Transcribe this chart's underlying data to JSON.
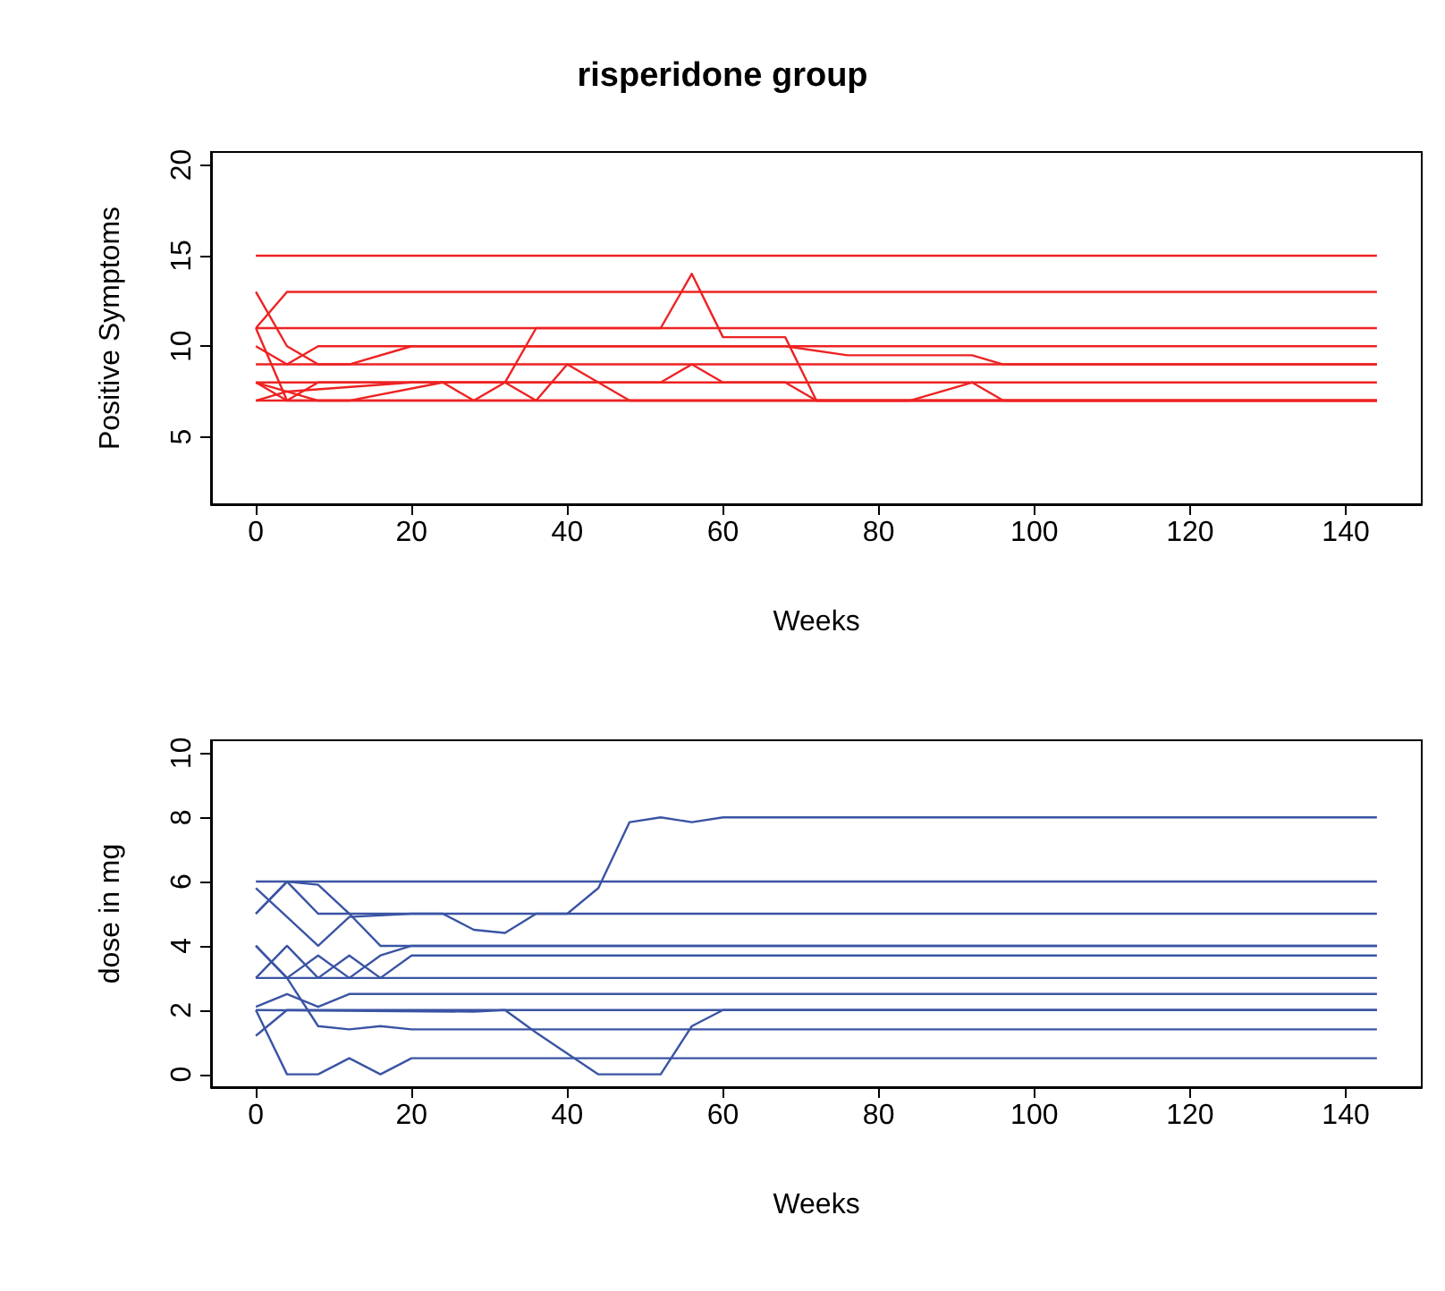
{
  "chart_data": [
    {
      "type": "line",
      "title": "risperidone group",
      "xlabel": "Weeks",
      "ylabel": "Positive Symptoms",
      "xlim": [
        -5.76,
        149.76
      ],
      "xticks": [
        0,
        20,
        40,
        60,
        80,
        100,
        120,
        140
      ],
      "ylim": [
        1.28,
        20.72
      ],
      "yticks": [
        5,
        10,
        15,
        20
      ],
      "grid": false,
      "series": [
        {
          "color": "#ee2222",
          "x": [
            0,
            144
          ],
          "values": [
            15,
            15
          ]
        },
        {
          "color": "#ee2222",
          "x": [
            0,
            4,
            144
          ],
          "values": [
            11,
            13,
            13
          ]
        },
        {
          "color": "#ee2222",
          "x": [
            0,
            4,
            8,
            12,
            20,
            68,
            76,
            92,
            96,
            144
          ],
          "values": [
            13,
            10,
            9,
            9,
            10,
            10,
            9.5,
            9.5,
            9,
            9
          ]
        },
        {
          "color": "#ee2222",
          "x": [
            0,
            52,
            56,
            60,
            68,
            72,
            144
          ],
          "values": [
            11,
            11,
            14,
            10.5,
            10.5,
            7,
            7
          ]
        },
        {
          "color": "#ee2222",
          "x": [
            0,
            4,
            8,
            144
          ],
          "values": [
            10,
            9,
            10,
            10
          ]
        },
        {
          "color": "#ee2222",
          "x": [
            0,
            28,
            32,
            36,
            144
          ],
          "values": [
            8,
            8,
            8,
            11,
            11
          ]
        },
        {
          "color": "#ee2222",
          "x": [
            0,
            144
          ],
          "values": [
            9,
            9
          ]
        },
        {
          "color": "#ee2222",
          "x": [
            0,
            4,
            8,
            52,
            56,
            60,
            68,
            72,
            144
          ],
          "values": [
            8,
            7,
            8,
            8,
            9,
            8,
            8,
            7,
            7
          ]
        },
        {
          "color": "#ee2222",
          "x": [
            0,
            4,
            20,
            144
          ],
          "values": [
            7,
            7.5,
            8,
            8
          ]
        },
        {
          "color": "#ee2222",
          "x": [
            0,
            28,
            32,
            36,
            40,
            44,
            48,
            84,
            92,
            96,
            144
          ],
          "values": [
            7,
            7,
            8,
            7,
            9,
            8,
            7,
            7,
            8,
            7,
            7
          ]
        },
        {
          "color": "#ee2222",
          "x": [
            0,
            8,
            144
          ],
          "values": [
            8,
            7,
            7
          ]
        },
        {
          "color": "#ee2222",
          "x": [
            0,
            4,
            12,
            24,
            28,
            144
          ],
          "values": [
            11,
            7,
            7,
            8,
            7,
            7
          ]
        }
      ]
    },
    {
      "type": "line",
      "xlabel": "Weeks",
      "ylabel": "dose in mg",
      "xlim": [
        -5.76,
        149.76
      ],
      "xticks": [
        0,
        20,
        40,
        60,
        80,
        100,
        120,
        140
      ],
      "ylim": [
        -0.4,
        10.4
      ],
      "yticks": [
        0,
        2,
        4,
        6,
        8,
        10
      ],
      "grid": false,
      "series": [
        {
          "color": "#3a54a4",
          "x": [
            0,
            144
          ],
          "values": [
            6,
            6
          ]
        },
        {
          "color": "#3a54a4",
          "x": [
            0,
            4,
            8,
            12,
            20,
            24,
            28,
            32,
            36,
            40,
            44,
            48,
            52,
            56,
            60,
            144
          ],
          "values": [
            5,
            6,
            5,
            5,
            5,
            5,
            4.5,
            4.4,
            5,
            5,
            5.8,
            7.85,
            8,
            7.85,
            8,
            8
          ]
        },
        {
          "color": "#3a54a4",
          "x": [
            0,
            8,
            12,
            20,
            144
          ],
          "values": [
            5.8,
            4,
            4.9,
            5,
            5
          ]
        },
        {
          "color": "#3a54a4",
          "x": [
            0,
            4,
            8,
            12,
            16,
            144
          ],
          "values": [
            5,
            6,
            5.9,
            5,
            4,
            4
          ]
        },
        {
          "color": "#3a54a4",
          "x": [
            0,
            4,
            8,
            12,
            16,
            20,
            144
          ],
          "values": [
            4,
            3,
            3.7,
            3,
            3.7,
            4,
            4
          ]
        },
        {
          "color": "#3a54a4",
          "x": [
            0,
            4,
            8,
            12,
            16,
            20,
            144
          ],
          "values": [
            3,
            4,
            3,
            3.7,
            3,
            3.7,
            3.7
          ]
        },
        {
          "color": "#3a54a4",
          "x": [
            0,
            4,
            8,
            12,
            16,
            20,
            144
          ],
          "values": [
            4,
            3,
            1.5,
            1.4,
            1.5,
            1.4,
            1.4
          ]
        },
        {
          "color": "#3a54a4",
          "x": [
            0,
            144
          ],
          "values": [
            3,
            3
          ]
        },
        {
          "color": "#3a54a4",
          "x": [
            0,
            4,
            8,
            12,
            144
          ],
          "values": [
            2.1,
            2.5,
            2.1,
            2.5,
            2.5
          ]
        },
        {
          "color": "#3a54a4",
          "x": [
            0,
            28,
            32,
            36,
            44,
            52,
            56,
            60,
            144
          ],
          "values": [
            2,
            1.95,
            2,
            1.3,
            0,
            0,
            1.5,
            2,
            2
          ]
        },
        {
          "color": "#3a54a4",
          "x": [
            0,
            4,
            8,
            12,
            16,
            20,
            144
          ],
          "values": [
            2,
            0,
            0,
            0.5,
            0,
            0.5,
            0.5
          ]
        },
        {
          "color": "#3a54a4",
          "x": [
            0,
            4,
            144
          ],
          "values": [
            1.2,
            2,
            2
          ]
        }
      ]
    }
  ]
}
